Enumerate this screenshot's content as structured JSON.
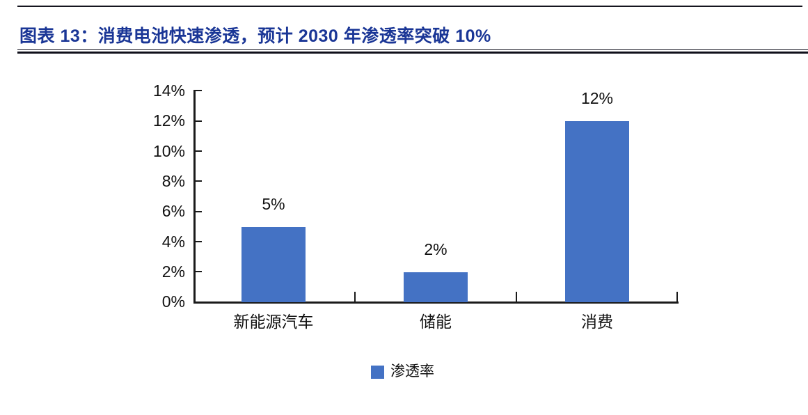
{
  "header": {
    "title": "图表 13：消费电池快速渗透，预计 2030 年渗透率突破 10%"
  },
  "chart_data": {
    "type": "bar",
    "categories": [
      "新能源汽车",
      "储能",
      "消费"
    ],
    "values": [
      5,
      2,
      12
    ],
    "data_labels": [
      "5%",
      "2%",
      "12%"
    ],
    "unit": "percent",
    "ylim": [
      0,
      14
    ],
    "y_ticks": [
      0,
      2,
      4,
      6,
      8,
      10,
      12,
      14
    ],
    "y_tick_labels_top_to_bottom": [
      "14%",
      "12%",
      "10%",
      "8%",
      "6%",
      "4%",
      "2%",
      "0%"
    ],
    "grid": false,
    "legend_position": "bottom",
    "legend": [
      {
        "label": "渗透率",
        "color": "#4472C4"
      }
    ]
  },
  "colors": {
    "title_blue": "#1A3696",
    "bar_blue": "#4472C4",
    "axis_black": "#1a1a1a"
  }
}
